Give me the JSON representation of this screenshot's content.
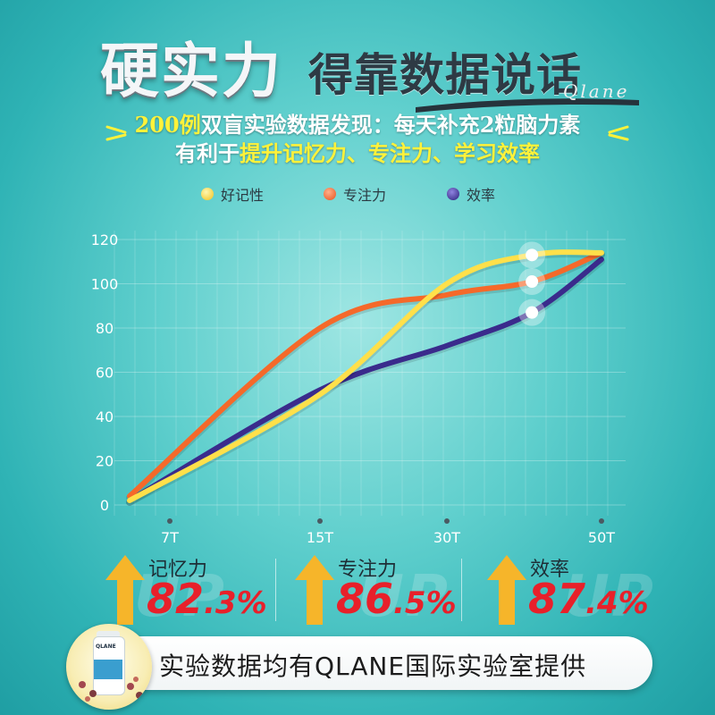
{
  "header": {
    "title_big": "硬实力",
    "title_small": "得靠数据说话",
    "brand": "Qlane"
  },
  "subtitle": {
    "line1_highlight": "200例",
    "line1_rest": "双盲实验数据发现：每天补充2粒脑力素",
    "line2_prefix": "有利于",
    "line2_highlight": "提升记忆力、专注力、学习效率"
  },
  "colors": {
    "memory": "#ffe04a",
    "focus": "#f5692a",
    "efficiency": "#3a2b8c",
    "up_arrow": "#f6b52a",
    "value_red": "#e8202a"
  },
  "chart_data": {
    "type": "line",
    "categories": [
      "7T",
      "15T",
      "30T",
      "50T"
    ],
    "ylim": [
      0,
      120
    ],
    "yticks": [
      0,
      20,
      40,
      60,
      80,
      100,
      120
    ],
    "series": [
      {
        "name": "好记性",
        "color": "#ffe04a",
        "points": [
          [
            0,
            2
          ],
          [
            1,
            50
          ],
          [
            2,
            100
          ],
          [
            2.55,
            113
          ],
          [
            3,
            114
          ]
        ]
      },
      {
        "name": "专注力",
        "color": "#f5692a",
        "points": [
          [
            0,
            4
          ],
          [
            1,
            80
          ],
          [
            2,
            95
          ],
          [
            2.55,
            101
          ],
          [
            3,
            114
          ]
        ]
      },
      {
        "name": "效率",
        "color": "#3a2b8c",
        "points": [
          [
            0,
            2
          ],
          [
            1,
            52
          ],
          [
            2,
            72
          ],
          [
            2.55,
            87
          ],
          [
            3,
            111
          ]
        ]
      }
    ]
  },
  "stats": [
    {
      "label": "记忆力",
      "value_int": "82",
      "value_dec": ".3%"
    },
    {
      "label": "专注力",
      "value_int": "86",
      "value_dec": ".5%"
    },
    {
      "label": "效率",
      "value_int": "87",
      "value_dec": ".4%"
    }
  ],
  "watermark": "UP",
  "footer": {
    "text": "实验数据均有QLANE国际实验室提供"
  },
  "product": {
    "brand": "QLANE"
  }
}
